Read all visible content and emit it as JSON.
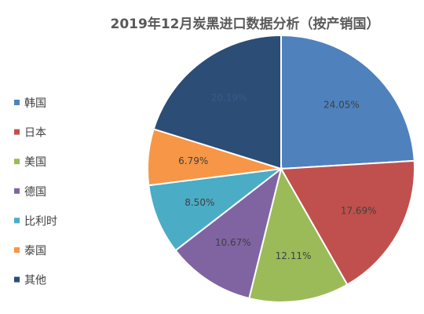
{
  "chart_data": {
    "type": "pie",
    "title": "2019年12月炭黑进口数据分析（按产销国）",
    "categories": [
      "韩国",
      "日本",
      "美国",
      "德国",
      "比利时",
      "泰国",
      "其他"
    ],
    "values": [
      24.05,
      17.69,
      12.11,
      10.67,
      8.5,
      6.79,
      20.19
    ],
    "labels": [
      "24.05%",
      "17.69%",
      "12.11%",
      "10.67%",
      "8.50%",
      "6.79%",
      "20.19%"
    ],
    "colors": [
      "#4f81bd",
      "#c0504d",
      "#9bbb59",
      "#8064a2",
      "#4bacc6",
      "#f79646",
      "#2c4d75"
    ],
    "label_colors": [
      "#404040",
      "#404040",
      "#404040",
      "#404040",
      "#404040",
      "#404040",
      "#3a5a8c"
    ],
    "legend_position": "left"
  }
}
